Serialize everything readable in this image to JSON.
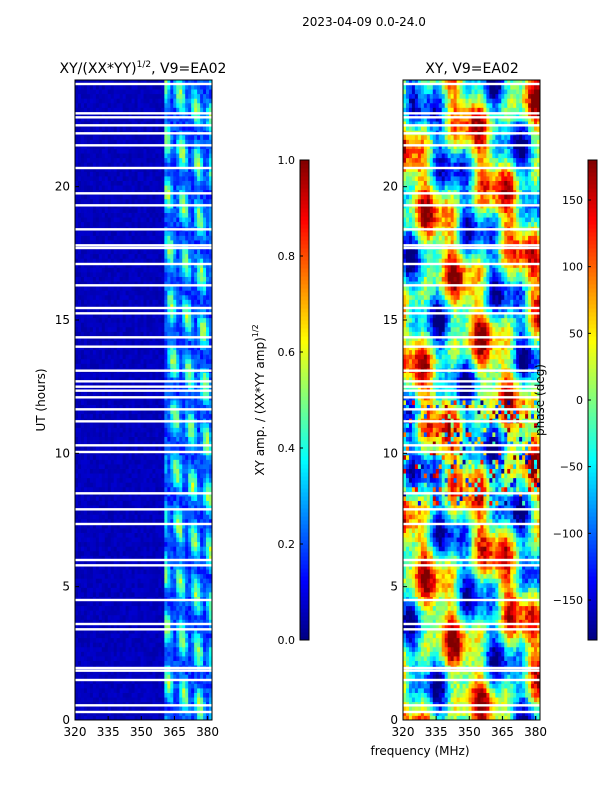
{
  "figure": {
    "suptitle": "2023-04-09 0.0-24.0",
    "shared_xlabel": "frequency (MHz)"
  },
  "colors": {
    "background": "#ffffff",
    "gap": "#ffffff",
    "axis": "#000000",
    "colormap": [
      "#00007f",
      "#0000ff",
      "#007fff",
      "#00ffff",
      "#7fff7f",
      "#ffff00",
      "#ff7f00",
      "#ff0000",
      "#7f0000"
    ]
  },
  "chart_data": [
    {
      "type": "heatmap",
      "title_main": "XY/(XX*YY)",
      "title_sup": "1/2",
      "title_suffix": ", V9=EA02",
      "xlabel": "",
      "ylabel": "UT (hours)",
      "xlim": [
        320,
        382
      ],
      "ylim": [
        0,
        24
      ],
      "xticks": [
        "320",
        "335",
        "350",
        "365",
        "380"
      ],
      "xtick_values": [
        320,
        335,
        350,
        365,
        380
      ],
      "yticks": [
        "0",
        "5",
        "10",
        "15",
        "20"
      ],
      "ytick_values": [
        0,
        5,
        10,
        15,
        20
      ],
      "colorbar": {
        "label_main": "XY amp. / (XX*YY amp)",
        "label_sup": "1/2",
        "range": [
          0,
          1
        ],
        "ticks": [
          "0.0",
          "0.2",
          "0.4",
          "0.6",
          "0.8",
          "1.0"
        ],
        "tick_values": [
          0,
          0.2,
          0.4,
          0.6,
          0.8,
          1.0
        ]
      },
      "pattern": "amplitude",
      "quiet_band_mhz": [
        320,
        361
      ],
      "active_band_mhz": [
        361,
        382
      ],
      "gap_hours": [
        0.3,
        0.55,
        1.5,
        1.85,
        1.95,
        3.4,
        3.6,
        4.5,
        5.8,
        6.0,
        7.35,
        7.9,
        8.5,
        10.05,
        10.3,
        11.2,
        11.65,
        12.1,
        12.35,
        12.5,
        12.7,
        13.1,
        14.0,
        14.35,
        15.25,
        15.45,
        16.3,
        17.1,
        17.7,
        17.8,
        18.4,
        19.3,
        19.75,
        20.7,
        21.55,
        22.0,
        22.3,
        22.6,
        22.75,
        23.85
      ]
    },
    {
      "type": "heatmap",
      "title_main": "XY, V9=EA02",
      "xlabel": "frequency (MHz)",
      "ylabel": "",
      "xlim": [
        320,
        382
      ],
      "ylim": [
        0,
        24
      ],
      "xticks": [
        "320",
        "335",
        "350",
        "365",
        "380"
      ],
      "xtick_values": [
        320,
        335,
        350,
        365,
        380
      ],
      "yticks": [
        "0",
        "5",
        "10",
        "15",
        "20"
      ],
      "ytick_values": [
        0,
        5,
        10,
        15,
        20
      ],
      "colorbar": {
        "label": "phase (deg)",
        "range": [
          -180,
          180
        ],
        "ticks": [
          "−150",
          "−100",
          "−50",
          "0",
          "50",
          "100",
          "150"
        ],
        "tick_values": [
          -150,
          -100,
          -50,
          0,
          50,
          100,
          150
        ]
      },
      "pattern": "phase",
      "gap_hours": [
        0.3,
        0.55,
        1.5,
        1.85,
        1.95,
        3.4,
        3.6,
        4.5,
        5.8,
        6.0,
        7.35,
        7.9,
        8.5,
        10.05,
        10.3,
        11.2,
        11.65,
        12.1,
        12.35,
        12.5,
        12.7,
        13.1,
        14.0,
        14.35,
        15.25,
        15.45,
        16.3,
        17.1,
        17.7,
        17.8,
        18.4,
        19.3,
        19.75,
        20.7,
        21.55,
        22.0,
        22.3,
        22.6,
        22.75,
        23.85
      ]
    }
  ]
}
